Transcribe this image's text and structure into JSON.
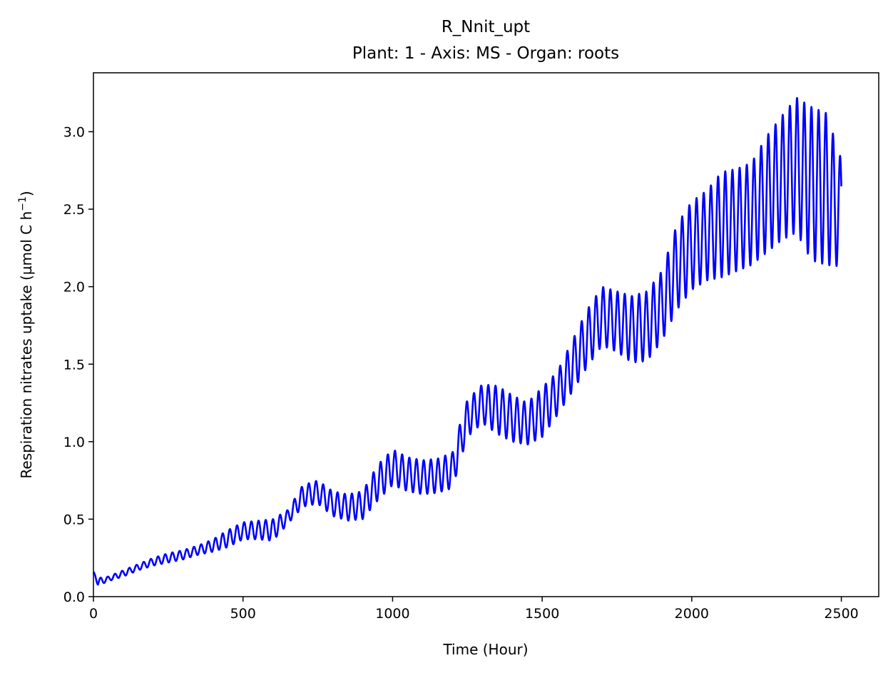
{
  "chart_data": {
    "type": "line",
    "title": "R_Nnit_upt",
    "subtitle": "Plant: 1 - Axis: MS - Organ: roots",
    "xlabel": "Time (Hour)",
    "ylabel": "Respiration nitrates uptake (µmol C h",
    "ylabel_superscript": "−1",
    "ylabel_close": ")",
    "xlim": [
      0,
      2625
    ],
    "ylim": [
      0,
      3.38
    ],
    "xticks": [
      0,
      500,
      1000,
      1500,
      2000,
      2500
    ],
    "xtick_labels": [
      "0",
      "500",
      "1000",
      "1500",
      "2000",
      "2500"
    ],
    "yticks": [
      0,
      0.5,
      1.0,
      1.5,
      2.0,
      2.5,
      3.0
    ],
    "ytick_labels": [
      "0.0",
      "0.5",
      "1.0",
      "1.5",
      "2.0",
      "2.5",
      "3.0"
    ],
    "grid": false,
    "legend": "none",
    "line_color": "#0000ff",
    "period_hours": 24,
    "series": [
      {
        "x": [
          0,
          15,
          50,
          100,
          150,
          200,
          250,
          300,
          350,
          400,
          450,
          500,
          550,
          600,
          650,
          700,
          750,
          800,
          850,
          900,
          950,
          1000,
          1050,
          1100,
          1150,
          1200,
          1230,
          1250,
          1300,
          1350,
          1400,
          1450,
          1500,
          1550,
          1600,
          1650,
          1700,
          1750,
          1800,
          1850,
          1900,
          1950,
          2000,
          2050,
          2100,
          2150,
          2200,
          2250,
          2300,
          2350,
          2400,
          2450,
          2500
        ],
        "peak": [
          0.16,
          0.12,
          0.13,
          0.17,
          0.21,
          0.25,
          0.28,
          0.3,
          0.33,
          0.37,
          0.43,
          0.48,
          0.49,
          0.5,
          0.56,
          0.72,
          0.75,
          0.68,
          0.66,
          0.68,
          0.85,
          0.95,
          0.9,
          0.88,
          0.89,
          0.93,
          1.15,
          1.27,
          1.37,
          1.36,
          1.3,
          1.25,
          1.35,
          1.45,
          1.65,
          1.85,
          2.0,
          1.97,
          1.94,
          1.97,
          2.1,
          2.4,
          2.55,
          2.62,
          2.74,
          2.76,
          2.8,
          2.97,
          3.1,
          3.22,
          3.16,
          3.12,
          2.82
        ],
        "trough": [
          0.16,
          0.07,
          0.1,
          0.13,
          0.17,
          0.2,
          0.22,
          0.24,
          0.27,
          0.29,
          0.32,
          0.37,
          0.37,
          0.36,
          0.47,
          0.58,
          0.6,
          0.52,
          0.49,
          0.5,
          0.62,
          0.72,
          0.68,
          0.66,
          0.67,
          0.7,
          0.9,
          1.03,
          1.12,
          1.05,
          1.0,
          0.98,
          1.03,
          1.17,
          1.32,
          1.48,
          1.62,
          1.58,
          1.51,
          1.52,
          1.65,
          1.85,
          1.98,
          2.04,
          2.06,
          2.1,
          2.14,
          2.22,
          2.3,
          2.35,
          2.17,
          2.14,
          2.13
        ]
      }
    ]
  }
}
